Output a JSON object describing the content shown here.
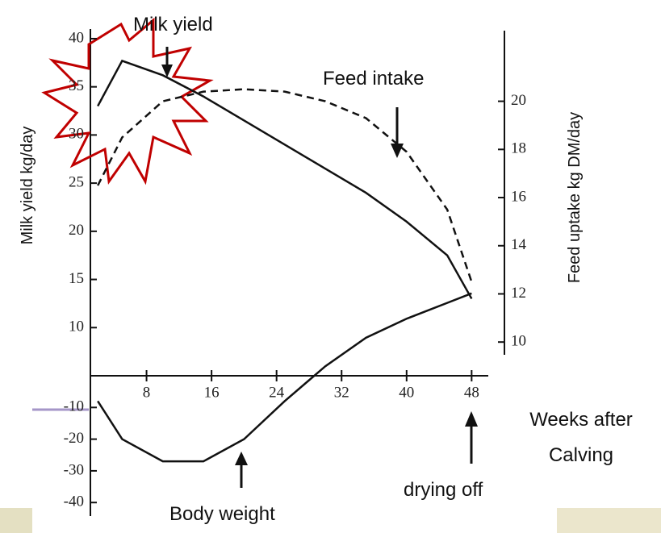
{
  "chart_data": {
    "type": "line",
    "x_label": [
      "Weeks after",
      "Calving"
    ],
    "y_label": "Milk yield kg/day",
    "y2_label": "Feed uptake kg DM/day",
    "annotations": [
      "Milk yield",
      "Feed intake",
      "Body weight",
      "drying off"
    ],
    "x": [
      2,
      5,
      10,
      15,
      20,
      25,
      30,
      35,
      40,
      45,
      48
    ],
    "xlim": [
      0,
      50
    ],
    "xticks": [
      8,
      16,
      24,
      32,
      40,
      48
    ],
    "ylim": [
      5,
      41
    ],
    "yticks": [
      10,
      15,
      20,
      25,
      30,
      35,
      40
    ],
    "y2lim": [
      8.6,
      23
    ],
    "y2ticks": [
      10,
      12,
      14,
      16,
      18,
      20
    ],
    "y3lim": [
      -43,
      0
    ],
    "y3ticks": [
      -10,
      -20,
      -30,
      -40
    ],
    "series": [
      {
        "name": "Milk yield",
        "color": "#111111",
        "dash": false,
        "axis": "y",
        "values": [
          33,
          37.7,
          36.2,
          34,
          31.5,
          29,
          26.5,
          24,
          21,
          17.5,
          13
        ]
      },
      {
        "name": "Feed intake",
        "color": "#111111",
        "dash": true,
        "axis": "y2",
        "values": [
          16.5,
          18.5,
          20,
          20.4,
          20.5,
          20.4,
          20,
          19.3,
          17.9,
          15.5,
          12.5
        ]
      },
      {
        "name": "Body weight",
        "color": "#111111",
        "dash": false,
        "axis": "y3",
        "values": [
          -8,
          -20,
          -27,
          -27,
          -20,
          -8,
          3,
          12,
          18,
          23,
          26
        ]
      }
    ]
  }
}
